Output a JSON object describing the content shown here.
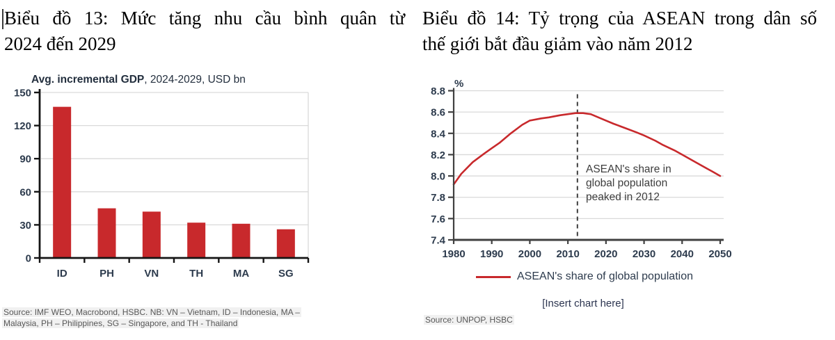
{
  "left_panel": {
    "title_line1": "Biểu đồ 13: Mức tăng nhu cầu bình quân từ",
    "title_line2": "2024 đến 2029",
    "source_line1": "Source: IMF WEO, Macrobond, HSBC. NB: VN – Vietnam, ID – Indonesia, MA –",
    "source_line2": "Malaysia, PH – Philippines, SG – Singapore, and TH - Thailand"
  },
  "right_panel": {
    "title_line1": "Biểu đồ 14: Tỷ trọng của ASEAN trong dân số",
    "title_line2": "thế giới bắt đầu giảm vào năm 2012",
    "insert_placeholder": "[Insert chart here]",
    "source": "Source: UNPOP, HSBC"
  },
  "colors": {
    "red": "#c8292c",
    "gridline": "#d9d9d9",
    "axis_left": "#141414",
    "axis_right": "#404040",
    "tick_label": "#2d3b4d",
    "chart_title": "#232f3e",
    "annotation": "#3d3d3d",
    "source_text": "#575757",
    "source_highlight": "#f1f1f1"
  },
  "chart_data": [
    {
      "type": "bar",
      "title_bold": "Avg. incremental GDP",
      "title_rest": ", 2024-2029, USD bn",
      "categories": [
        "ID",
        "PH",
        "VN",
        "TH",
        "MA",
        "SG"
      ],
      "values": [
        137,
        45,
        42,
        32,
        31,
        26
      ],
      "ylim": [
        0,
        150
      ],
      "yticks": [
        0,
        30,
        60,
        90,
        120,
        150
      ],
      "bar_color": "#c8292c",
      "grid": "horizontal"
    },
    {
      "type": "line",
      "ylabel": "%",
      "legend_label": "ASEAN's share of global population",
      "legend_position": "bottom",
      "line_color": "#c8292c",
      "ylim": [
        7.4,
        8.8
      ],
      "yticks": [
        7.4,
        7.6,
        7.8,
        8.0,
        8.2,
        8.4,
        8.6,
        8.8
      ],
      "xlim": [
        1980,
        2050
      ],
      "xticks": [
        1980,
        1990,
        2000,
        2010,
        2020,
        2030,
        2040,
        2050
      ],
      "dashed_line_x": 2012.5,
      "annotation_lines": [
        "ASEAN's share in",
        "global population",
        "peaked in 2012"
      ],
      "x": [
        1980,
        1982,
        1985,
        1988,
        1990,
        1992,
        1995,
        1998,
        2000,
        2003,
        2005,
        2008,
        2010,
        2012,
        2014,
        2016,
        2018,
        2020,
        2022,
        2025,
        2028,
        2030,
        2033,
        2035,
        2038,
        2040,
        2043,
        2045,
        2048,
        2050
      ],
      "values": [
        7.92,
        8.02,
        8.13,
        8.21,
        8.26,
        8.31,
        8.4,
        8.48,
        8.52,
        8.54,
        8.55,
        8.57,
        8.58,
        8.59,
        8.59,
        8.58,
        8.55,
        8.52,
        8.49,
        8.45,
        8.41,
        8.38,
        8.33,
        8.29,
        8.24,
        8.2,
        8.14,
        8.1,
        8.04,
        8.0
      ],
      "grid": "horizontal"
    }
  ]
}
